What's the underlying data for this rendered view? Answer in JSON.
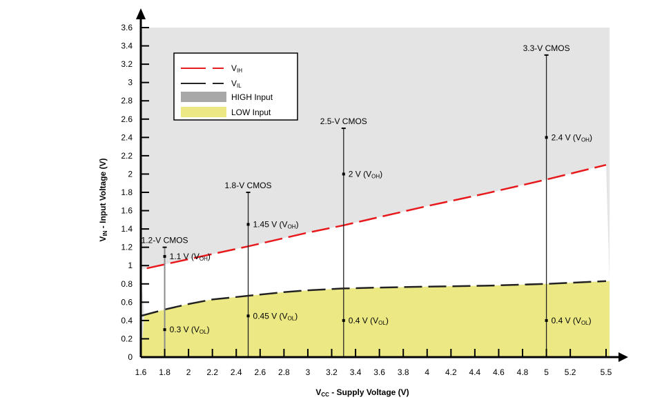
{
  "chart_data": {
    "type": "line",
    "xlabel": {
      "main": "V",
      "sub": "CC",
      "rest": " - Supply Voltage (V)"
    },
    "ylabel": {
      "main": "V",
      "sub": "IN",
      "rest": " - Input Voltage (V)"
    },
    "xlim": [
      1.6,
      5.5
    ],
    "ylim": [
      0,
      3.6
    ],
    "xticks": [
      "1.6",
      "1.8",
      "2",
      "2.2",
      "2.4",
      "2.6",
      "2.8",
      "3",
      "3.2",
      "3.4",
      "3.6",
      "3.8",
      "4",
      "4.2",
      "4.4",
      "4.6",
      "4.8",
      "5",
      "5.2",
      "5.5"
    ],
    "xtick_values": [
      1.6,
      1.8,
      2,
      2.2,
      2.4,
      2.6,
      2.8,
      3,
      3.2,
      3.4,
      3.6,
      3.8,
      4,
      4.2,
      4.4,
      4.6,
      4.8,
      5,
      5.2,
      5.5
    ],
    "yticks": [
      "0",
      "0.2",
      "0.4",
      "0.6",
      "0.8",
      "1",
      "1.2",
      "1.4",
      "1.6",
      "1.8",
      "2",
      "2.2",
      "2.4",
      "2.6",
      "2.8",
      "3",
      "3.2",
      "3.4",
      "3.6"
    ],
    "grid": false,
    "legend_placement": "top-left",
    "legend": [
      {
        "label": "V",
        "sub": "IH",
        "kind": "dash",
        "color": "#e8191c"
      },
      {
        "label": "V",
        "sub": "IL",
        "kind": "dash",
        "color": "#222222"
      },
      {
        "label": "HIGH Input",
        "kind": "box",
        "color": "#a8a8a8"
      },
      {
        "label": "LOW Input",
        "kind": "box",
        "color": "#ece984"
      }
    ],
    "colors": {
      "high_region": "#e4e4e4",
      "low_region": "#ece984",
      "vih": "#e8191c",
      "vil": "#222222"
    },
    "series": [
      {
        "name": "VIH",
        "x": [
          1.65,
          2,
          2.5,
          3,
          3.3,
          4,
          4.5,
          5,
          5.5
        ],
        "y": [
          0.97,
          1.07,
          1.21,
          1.36,
          1.44,
          1.65,
          1.79,
          1.94,
          2.1
        ]
      },
      {
        "name": "VIL",
        "x": [
          1.6,
          1.8,
          2,
          2.2,
          2.5,
          2.8,
          3,
          3.3,
          3.6,
          4,
          4.5,
          5,
          5.5
        ],
        "y": [
          0.45,
          0.52,
          0.58,
          0.63,
          0.67,
          0.71,
          0.73,
          0.75,
          0.76,
          0.77,
          0.78,
          0.8,
          0.83
        ]
      }
    ],
    "standards": [
      {
        "label": "1.2-V CMOS",
        "vcc": 1.8,
        "top": 1.2,
        "voh": 1.1,
        "vol": 0.3,
        "voh_label": "1.1 V (V",
        "vol_label": "0.3 V (V",
        "line_color": "#8a8a8a"
      },
      {
        "label": "1.8-V CMOS",
        "vcc": 2.5,
        "top": 1.8,
        "voh": 1.45,
        "vol": 0.45,
        "voh_label": "1.45 V (V",
        "vol_label": "0.45 V (V",
        "line_color": "#222222"
      },
      {
        "label": "2.5-V CMOS",
        "vcc": 3.3,
        "top": 2.5,
        "voh": 2.0,
        "vol": 0.4,
        "voh_label": "2 V (V",
        "vol_label": "0.4 V (V",
        "line_color": "#222222"
      },
      {
        "label": "3.3-V CMOS",
        "vcc": 5.0,
        "top": 3.3,
        "voh": 2.4,
        "vol": 0.4,
        "voh_label": "2.4 V (V",
        "vol_label": "0.4 V (V",
        "line_color": "#222222"
      }
    ],
    "voh_sub": "OH",
    "vol_sub": "OL"
  }
}
